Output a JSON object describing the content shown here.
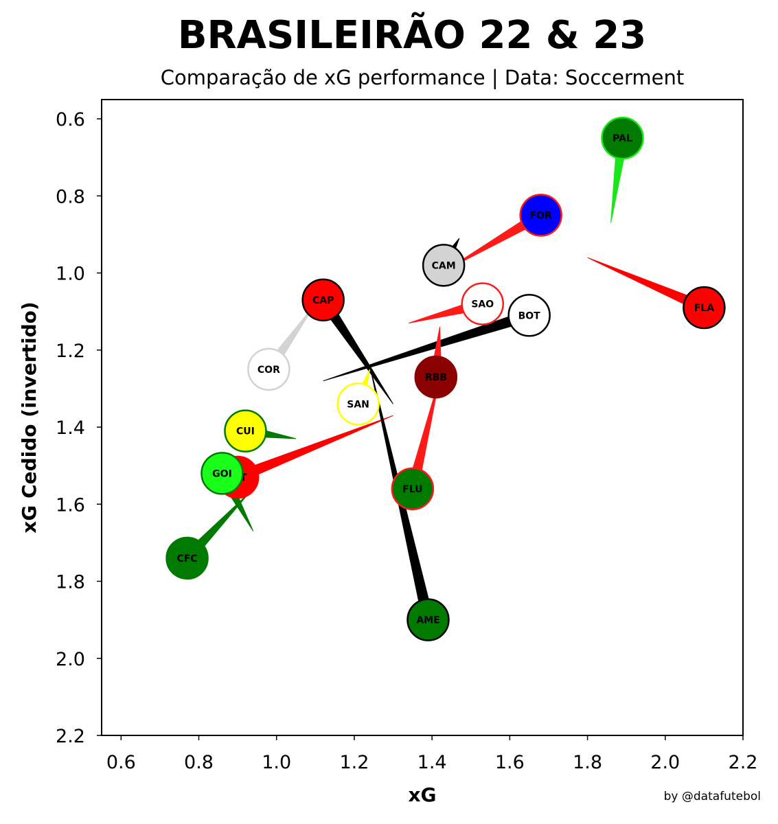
{
  "chart_data": {
    "type": "scatter",
    "title": "BRASILEIRÃO 22 & 23",
    "subtitle": "Comparação de xG performance | Data: Soccerment",
    "xlabel": "xG",
    "ylabel": "xG Cedido (invertido)",
    "xlim": [
      0.55,
      2.2
    ],
    "ylim": [
      2.2,
      0.55
    ],
    "y_inverted": true,
    "xticks": [
      "0.6",
      "0.8",
      "1.0",
      "1.2",
      "1.4",
      "1.6",
      "1.8",
      "2.0",
      "2.2"
    ],
    "yticks": [
      "0.6",
      "0.8",
      "1.0",
      "1.2",
      "1.4",
      "1.6",
      "1.8",
      "2.0",
      "2.2"
    ],
    "grid": false,
    "credit": "by @datafutebol",
    "teams": [
      {
        "label": "PAL",
        "x": 1.89,
        "y": 0.65,
        "x_prev": 1.86,
        "y_prev": 0.87,
        "fill": "#007a00",
        "edge": "#19e619",
        "trail": "#19e619",
        "text": "#000000"
      },
      {
        "label": "FOR",
        "x": 1.68,
        "y": 0.85,
        "x_prev": 1.44,
        "y_prev": 0.99,
        "fill": "#0000ff",
        "edge": "#ff1a1a",
        "trail": "#ff1a1a",
        "text": "#000000"
      },
      {
        "label": "CAM",
        "x": 1.43,
        "y": 0.98,
        "x_prev": 1.47,
        "y_prev": 0.91,
        "fill": "#d3d3d3",
        "edge": "#000000",
        "trail": "#000000",
        "text": "#000000"
      },
      {
        "label": "FLA",
        "x": 2.1,
        "y": 1.09,
        "x_prev": 1.8,
        "y_prev": 0.96,
        "fill": "#ff0000",
        "edge": "#000000",
        "trail": "#ff0000",
        "text": "#000000"
      },
      {
        "label": "CAP",
        "x": 1.12,
        "y": 1.07,
        "x_prev": 1.3,
        "y_prev": 1.34,
        "fill": "#ff0000",
        "edge": "#000000",
        "trail": "#000000",
        "text": "#000000"
      },
      {
        "label": "SAO",
        "x": 1.53,
        "y": 1.08,
        "x_prev": 1.34,
        "y_prev": 1.13,
        "fill": "#ffffff",
        "edge": "#ff1a1a",
        "trail": "#ff1a1a",
        "text": "#000000"
      },
      {
        "label": "BOT",
        "x": 1.65,
        "y": 1.11,
        "x_prev": 1.12,
        "y_prev": 1.28,
        "fill": "#ffffff",
        "edge": "#000000",
        "trail": "#000000",
        "text": "#000000"
      },
      {
        "label": "COR",
        "x": 0.98,
        "y": 1.25,
        "x_prev": 1.1,
        "y_prev": 1.08,
        "fill": "#ffffff",
        "edge": "#d3d3d3",
        "trail": "#d3d3d3",
        "text": "#000000"
      },
      {
        "label": "RBB",
        "x": 1.41,
        "y": 1.27,
        "x_prev": 1.42,
        "y_prev": 1.14,
        "fill": "#8b0000",
        "edge": "#8b0000",
        "trail": "#ff1a1a",
        "text": "#000000"
      },
      {
        "label": "SAN",
        "x": 1.21,
        "y": 1.34,
        "x_prev": 1.24,
        "y_prev": 1.25,
        "fill": "#ffffff",
        "edge": "#ffff00",
        "trail": "#ffff00",
        "text": "#000000"
      },
      {
        "label": "CUI",
        "x": 0.92,
        "y": 1.41,
        "x_prev": 1.05,
        "y_prev": 1.43,
        "fill": "#ffff00",
        "edge": "#007a00",
        "trail": "#007a00",
        "text": "#000000"
      },
      {
        "label": "FLU",
        "x": 1.35,
        "y": 1.56,
        "x_prev": 1.42,
        "y_prev": 1.27,
        "fill": "#007a00",
        "edge": "#ff1a1a",
        "trail": "#ff1a1a",
        "text": "#000000"
      },
      {
        "label": "INT",
        "x": 0.9,
        "y": 1.53,
        "x_prev": 1.3,
        "y_prev": 1.37,
        "fill": "#ff0000",
        "edge": "#ff0000",
        "trail": "#ff0000",
        "text": "#000000"
      },
      {
        "label": "GOI",
        "x": 0.86,
        "y": 1.52,
        "x_prev": 0.94,
        "y_prev": 1.67,
        "fill": "#19ff19",
        "edge": "#007a00",
        "trail": "#007a00",
        "text": "#000000"
      },
      {
        "label": "CFC",
        "x": 0.77,
        "y": 1.74,
        "x_prev": 0.93,
        "y_prev": 1.57,
        "fill": "#007a00",
        "edge": "#007a00",
        "trail": "#007a00",
        "text": "#000000"
      },
      {
        "label": "AME",
        "x": 1.39,
        "y": 1.9,
        "x_prev": 1.24,
        "y_prev": 1.24,
        "fill": "#007a00",
        "edge": "#000000",
        "trail": "#000000",
        "text": "#000000"
      }
    ]
  }
}
